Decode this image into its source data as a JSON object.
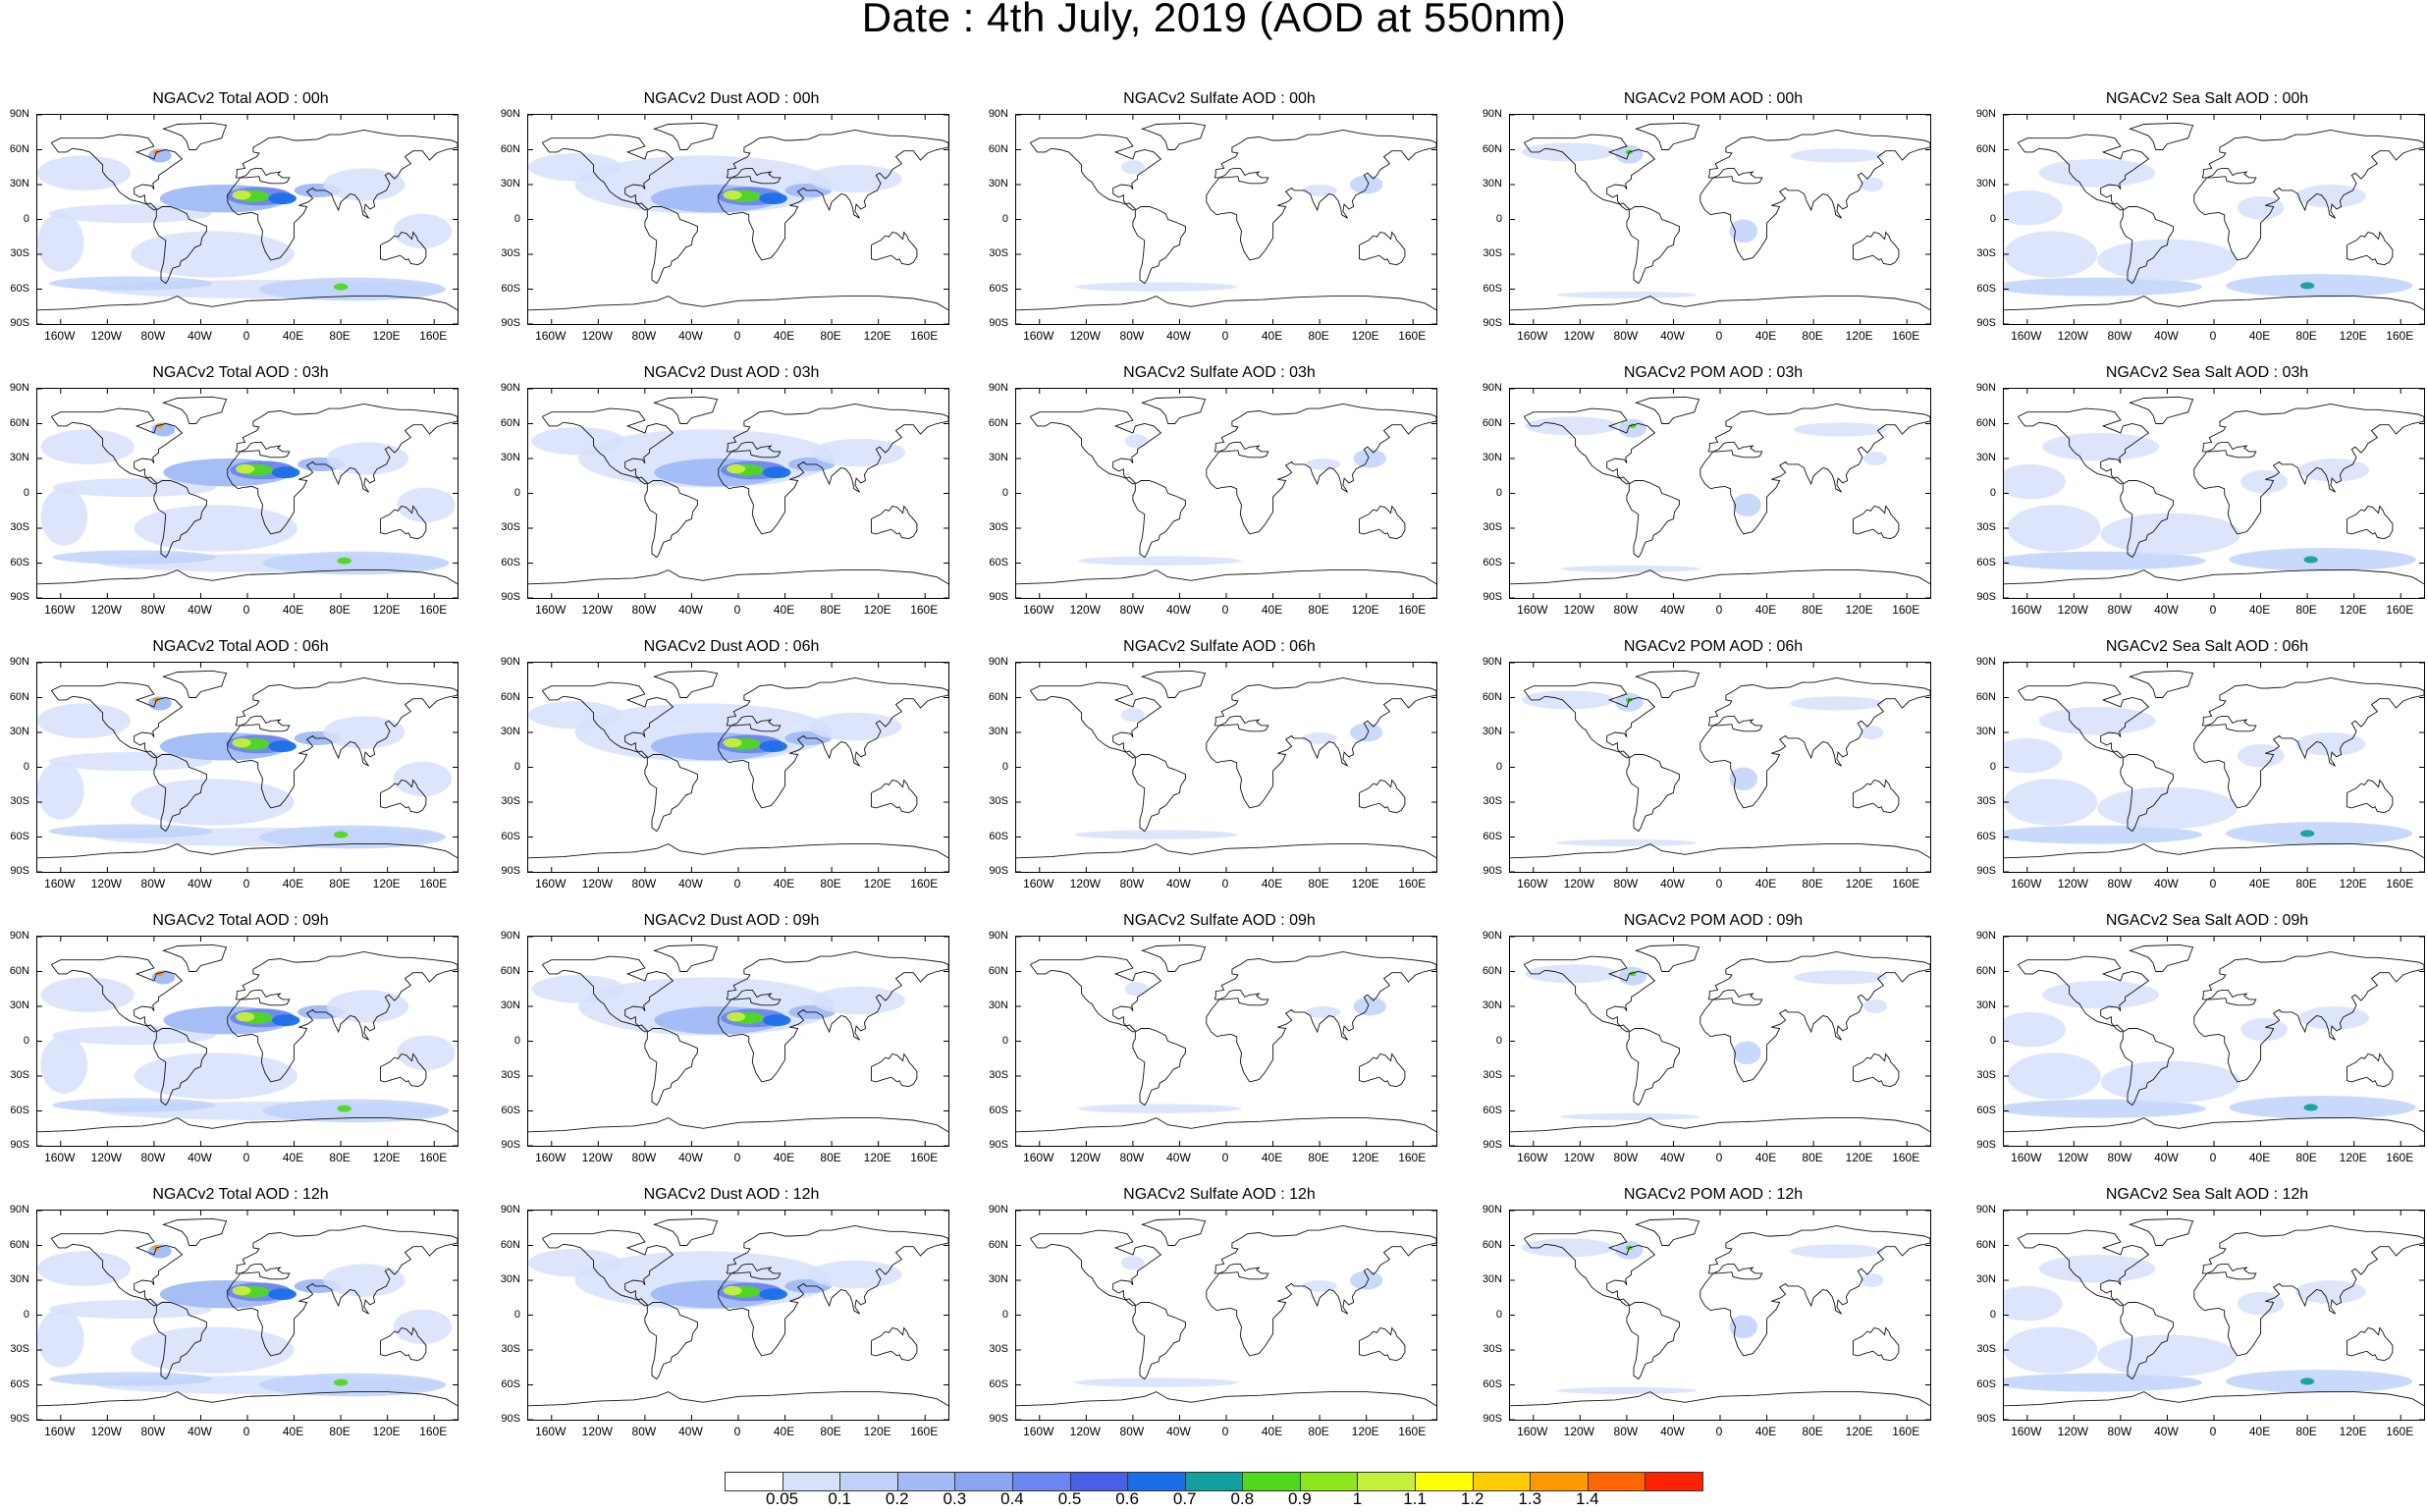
{
  "title": "Date : 4th July, 2019 (AOD at 550nm)",
  "latitude_labels": [
    "90N",
    "60N",
    "30N",
    "0",
    "30S",
    "60S",
    "90S"
  ],
  "longitude_labels": [
    "160W",
    "120W",
    "80W",
    "40W",
    "0",
    "40E",
    "80E",
    "120E",
    "160E"
  ],
  "columns": [
    {
      "species": "total",
      "accent": "#7b96ee"
    },
    {
      "species": "dust",
      "accent": "#7b96ee"
    },
    {
      "species": "sulfate",
      "accent": "#c4d4fb"
    },
    {
      "species": "pom",
      "accent": "#c4d4fb"
    },
    {
      "species": "seasalt",
      "accent": "#a9c0f7"
    }
  ],
  "panels": [
    [
      "NGACv2 Total AOD : 00h",
      "NGACv2 Dust AOD : 00h",
      "NGACv2 Sulfate AOD : 00h",
      "NGACv2 POM AOD : 00h",
      "NGACv2 Sea Salt AOD : 00h"
    ],
    [
      "NGACv2 Total AOD : 03h",
      "NGACv2 Dust AOD : 03h",
      "NGACv2 Sulfate AOD : 03h",
      "NGACv2 POM AOD : 03h",
      "NGACv2 Sea Salt AOD : 03h"
    ],
    [
      "NGACv2 Total AOD : 06h",
      "NGACv2 Dust AOD : 06h",
      "NGACv2 Sulfate AOD : 06h",
      "NGACv2 POM AOD : 06h",
      "NGACv2 Sea Salt AOD : 06h"
    ],
    [
      "NGACv2 Total AOD : 09h",
      "NGACv2 Dust AOD : 09h",
      "NGACv2 Sulfate AOD : 09h",
      "NGACv2 POM AOD : 09h",
      "NGACv2 Sea Salt  AOD : 09h"
    ],
    [
      "NGACv2 Total AOD  : 12h",
      "NGACv2 Dust AOD : 12h",
      "NGACv2 Sulfate AOD : 12h",
      "NGACv2 POM  AOD : 12h",
      "NGACv2 Sea Salt  AOD : 12h"
    ]
  ],
  "colorbar": {
    "labels": [
      "0.05",
      "0.1",
      "0.2",
      "0.3",
      "0.4",
      "0.5",
      "0.6",
      "0.7",
      "0.8",
      "0.9",
      "1",
      "1.1",
      "1.2",
      "1.3",
      "1.4"
    ],
    "colors": [
      "#ffffff",
      "#d6e1fc",
      "#c0d2fa",
      "#a1bbf6",
      "#8aa6f3",
      "#6b86ee",
      "#4a5fe8",
      "#1a6fe8",
      "#15a0a0",
      "#4ed91b",
      "#8ee61c",
      "#c6ef3c",
      "#ffff00",
      "#ffcc00",
      "#ff9900",
      "#ff6600",
      "#ff2200"
    ]
  }
}
